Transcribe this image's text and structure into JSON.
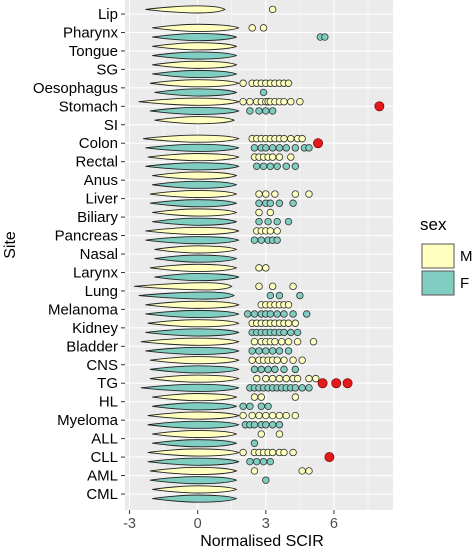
{
  "chart_data": {
    "type": "violin",
    "title": "",
    "xlabel": "Normalised SCIR",
    "ylabel": "Site",
    "xlim": [
      -3.2,
      8.6
    ],
    "x_ticks": [
      -3,
      0,
      3,
      6
    ],
    "x_tick_labels": [
      "-3",
      "0",
      "3",
      "6"
    ],
    "sites": [
      "Lip",
      "Pharynx",
      "Tongue",
      "SG",
      "Oesophagus",
      "Stomach",
      "SI",
      "Colon",
      "Rectal",
      "Anus",
      "Liver",
      "Biliary",
      "Pancreas",
      "Nasal",
      "Larynx",
      "Lung",
      "Melanoma",
      "Kidney",
      "Bladder",
      "CNS",
      "TG",
      "HL",
      "Myeloma",
      "ALL",
      "CLL",
      "AML",
      "CML"
    ],
    "legend": {
      "title": "sex",
      "position": "right",
      "entries": [
        {
          "key": "M",
          "label": "M",
          "color": "#FFFFBF"
        },
        {
          "key": "F",
          "label": "F",
          "color": "#80CDC1"
        }
      ]
    },
    "colors": {
      "male_fill": "#FFFFBF",
      "female_fill": "#80CDC1",
      "outlier_stroke": "#333333",
      "highlight": "#E31A1C",
      "panel_bg": "#EBEBEB",
      "grid": "#FFFFFF"
    },
    "grid": true,
    "violins": [
      {
        "site": "Lip",
        "sex": "M",
        "range": [
          -2.3,
          1.2
        ],
        "peak": 0
      },
      {
        "site": "Pharynx",
        "sex": "M",
        "range": [
          -2.0,
          1.8
        ],
        "peak": 0
      },
      {
        "site": "Pharynx",
        "sex": "F",
        "range": [
          -2.0,
          1.7
        ],
        "peak": 0
      },
      {
        "site": "Tongue",
        "sex": "M",
        "range": [
          -2.0,
          1.7
        ],
        "peak": 0
      },
      {
        "site": "Tongue",
        "sex": "F",
        "range": [
          -2.0,
          1.7
        ],
        "peak": 0
      },
      {
        "site": "SG",
        "sex": "M",
        "range": [
          -2.0,
          1.7
        ],
        "peak": 0
      },
      {
        "site": "SG",
        "sex": "F",
        "range": [
          -2.0,
          1.7
        ],
        "peak": 0
      },
      {
        "site": "Oesophagus",
        "sex": "M",
        "range": [
          -2.1,
          1.8
        ],
        "peak": 0
      },
      {
        "site": "Oesophagus",
        "sex": "F",
        "range": [
          -1.9,
          1.7
        ],
        "peak": 0
      },
      {
        "site": "Stomach",
        "sex": "M",
        "range": [
          -2.6,
          1.8
        ],
        "peak": 0
      },
      {
        "site": "Stomach",
        "sex": "F",
        "range": [
          -2.1,
          1.8
        ],
        "peak": 0
      },
      {
        "site": "SI",
        "sex": "M",
        "range": [
          -1.9,
          1.6
        ],
        "peak": 0
      },
      {
        "site": "Colon",
        "sex": "M",
        "range": [
          -2.4,
          1.8
        ],
        "peak": 0
      },
      {
        "site": "Colon",
        "sex": "F",
        "range": [
          -2.3,
          1.8
        ],
        "peak": 0
      },
      {
        "site": "Rectal",
        "sex": "M",
        "range": [
          -2.2,
          1.8
        ],
        "peak": 0
      },
      {
        "site": "Rectal",
        "sex": "F",
        "range": [
          -2.3,
          1.8
        ],
        "peak": 0
      },
      {
        "site": "Anus",
        "sex": "M",
        "range": [
          -2.0,
          1.7
        ],
        "peak": 0
      },
      {
        "site": "Anus",
        "sex": "F",
        "range": [
          -2.0,
          1.7
        ],
        "peak": 0
      },
      {
        "site": "Liver",
        "sex": "M",
        "range": [
          -2.1,
          1.7
        ],
        "peak": 0
      },
      {
        "site": "Liver",
        "sex": "F",
        "range": [
          -2.1,
          1.7
        ],
        "peak": 0
      },
      {
        "site": "Biliary",
        "sex": "M",
        "range": [
          -2.0,
          1.7
        ],
        "peak": 0
      },
      {
        "site": "Biliary",
        "sex": "F",
        "range": [
          -2.0,
          1.7
        ],
        "peak": 0
      },
      {
        "site": "Pancreas",
        "sex": "M",
        "range": [
          -2.3,
          1.8
        ],
        "peak": 0
      },
      {
        "site": "Pancreas",
        "sex": "F",
        "range": [
          -2.3,
          1.8
        ],
        "peak": 0
      },
      {
        "site": "Nasal",
        "sex": "M",
        "range": [
          -1.9,
          1.7
        ],
        "peak": 0
      },
      {
        "site": "Nasal",
        "sex": "F",
        "range": [
          -1.9,
          1.7
        ],
        "peak": 0
      },
      {
        "site": "Larynx",
        "sex": "M",
        "range": [
          -2.1,
          1.7
        ],
        "peak": 0
      },
      {
        "site": "Larynx",
        "sex": "F",
        "range": [
          -1.9,
          1.8
        ],
        "peak": 0
      },
      {
        "site": "Lung",
        "sex": "M",
        "range": [
          -2.8,
          1.5
        ],
        "peak": 0.4
      },
      {
        "site": "Lung",
        "sex": "F",
        "range": [
          -2.6,
          1.6
        ],
        "peak": 0.4
      },
      {
        "site": "Melanoma",
        "sex": "M",
        "range": [
          -2.3,
          1.8
        ],
        "peak": 0
      },
      {
        "site": "Melanoma",
        "sex": "F",
        "range": [
          -2.3,
          1.8
        ],
        "peak": 0
      },
      {
        "site": "Kidney",
        "sex": "M",
        "range": [
          -2.2,
          1.8
        ],
        "peak": 0
      },
      {
        "site": "Kidney",
        "sex": "F",
        "range": [
          -2.3,
          1.8
        ],
        "peak": 0
      },
      {
        "site": "Bladder",
        "sex": "M",
        "range": [
          -2.5,
          1.8
        ],
        "peak": 0
      },
      {
        "site": "Bladder",
        "sex": "F",
        "range": [
          -2.3,
          1.8
        ],
        "peak": 0
      },
      {
        "site": "CNS",
        "sex": "M",
        "range": [
          -2.1,
          1.8
        ],
        "peak": 0
      },
      {
        "site": "CNS",
        "sex": "F",
        "range": [
          -2.1,
          1.8
        ],
        "peak": 0
      },
      {
        "site": "TG",
        "sex": "M",
        "range": [
          -2.1,
          1.8
        ],
        "peak": 0
      },
      {
        "site": "TG",
        "sex": "F",
        "range": [
          -2.5,
          1.8
        ],
        "peak": 0
      },
      {
        "site": "HL",
        "sex": "M",
        "range": [
          -2.0,
          1.7
        ],
        "peak": 0
      },
      {
        "site": "HL",
        "sex": "F",
        "range": [
          -2.0,
          1.7
        ],
        "peak": 0
      },
      {
        "site": "Myeloma",
        "sex": "M",
        "range": [
          -2.2,
          1.8
        ],
        "peak": 0
      },
      {
        "site": "Myeloma",
        "sex": "F",
        "range": [
          -2.2,
          1.8
        ],
        "peak": 0
      },
      {
        "site": "ALL",
        "sex": "M",
        "range": [
          -2.0,
          1.7
        ],
        "peak": 0
      },
      {
        "site": "ALL",
        "sex": "F",
        "range": [
          -2.0,
          1.7
        ],
        "peak": 0
      },
      {
        "site": "CLL",
        "sex": "M",
        "range": [
          -2.2,
          1.8
        ],
        "peak": 0
      },
      {
        "site": "CLL",
        "sex": "F",
        "range": [
          -2.2,
          1.8
        ],
        "peak": 0
      },
      {
        "site": "AML",
        "sex": "M",
        "range": [
          -2.1,
          1.7
        ],
        "peak": 0
      },
      {
        "site": "AML",
        "sex": "F",
        "range": [
          -2.1,
          1.7
        ],
        "peak": 0
      },
      {
        "site": "CML",
        "sex": "M",
        "range": [
          -2.0,
          1.7
        ],
        "peak": 0
      },
      {
        "site": "CML",
        "sex": "F",
        "range": [
          -2.0,
          1.7
        ],
        "peak": 0
      }
    ],
    "outliers": [
      {
        "site": "Lip",
        "sex": "M",
        "x": [
          3.3
        ]
      },
      {
        "site": "Pharynx",
        "sex": "M",
        "x": [
          2.4,
          2.9
        ]
      },
      {
        "site": "Pharynx",
        "sex": "F",
        "x": [
          5.4,
          5.6
        ]
      },
      {
        "site": "Oesophagus",
        "sex": "M",
        "x": [
          2.0,
          2.4,
          2.6,
          2.8,
          3.0,
          3.2,
          3.4,
          3.6,
          3.8,
          4.0
        ]
      },
      {
        "site": "Oesophagus",
        "sex": "F",
        "x": [
          2.9
        ]
      },
      {
        "site": "Stomach",
        "sex": "M",
        "x": [
          2.0,
          2.3,
          2.6,
          2.8,
          3.0,
          3.1,
          3.2,
          3.4,
          3.6,
          3.8,
          4.1,
          4.5
        ]
      },
      {
        "site": "Stomach",
        "sex": "F",
        "x": [
          2.3,
          2.7,
          3.0,
          3.3
        ]
      },
      {
        "site": "Colon",
        "sex": "M",
        "x": [
          2.4,
          2.6,
          2.8,
          3.0,
          3.2,
          3.4,
          3.6,
          3.8,
          4.1,
          4.4,
          4.6
        ]
      },
      {
        "site": "Colon",
        "sex": "F",
        "x": [
          2.5,
          2.8,
          3.0,
          3.3,
          3.6,
          3.9,
          4.3,
          4.7,
          4.9
        ]
      },
      {
        "site": "Rectal",
        "sex": "M",
        "x": [
          2.5,
          2.7,
          2.9,
          3.1,
          3.3,
          3.6,
          4.1
        ]
      },
      {
        "site": "Rectal",
        "sex": "F",
        "x": [
          2.6,
          2.9,
          3.2,
          3.5,
          3.9,
          4.3
        ]
      },
      {
        "site": "Liver",
        "sex": "M",
        "x": [
          2.7,
          3.0,
          3.4,
          4.3,
          4.9
        ]
      },
      {
        "site": "Liver",
        "sex": "F",
        "x": [
          2.7,
          3.0,
          3.2,
          3.6,
          4.2
        ]
      },
      {
        "site": "Biliary",
        "sex": "M",
        "x": [
          2.7,
          3.2
        ]
      },
      {
        "site": "Biliary",
        "sex": "F",
        "x": [
          2.7,
          3.1,
          3.5,
          4.0
        ]
      },
      {
        "site": "Pancreas",
        "sex": "M",
        "x": [
          2.6,
          2.8,
          3.0,
          3.2,
          3.5
        ]
      },
      {
        "site": "Pancreas",
        "sex": "F",
        "x": [
          2.5,
          2.8,
          3.1,
          3.3,
          3.5
        ]
      },
      {
        "site": "Larynx",
        "sex": "M",
        "x": [
          2.7,
          3.0
        ]
      },
      {
        "site": "Lung",
        "sex": "M",
        "x": [
          2.7,
          3.3,
          4.2
        ]
      },
      {
        "site": "Lung",
        "sex": "F",
        "x": [
          3.2,
          3.6,
          4.5
        ]
      },
      {
        "site": "Melanoma",
        "sex": "M",
        "x": [
          2.8,
          3.0,
          3.2,
          3.4,
          3.6,
          3.8,
          4.0
        ]
      },
      {
        "site": "Melanoma",
        "sex": "F",
        "x": [
          2.2,
          2.5,
          2.8,
          3.0,
          3.2,
          3.5,
          3.8,
          4.2,
          4.8
        ]
      },
      {
        "site": "Kidney",
        "sex": "M",
        "x": [
          2.4,
          2.6,
          2.8,
          3.0,
          3.2,
          3.4,
          3.6,
          3.8,
          4.0,
          4.3
        ]
      },
      {
        "site": "Kidney",
        "sex": "F",
        "x": [
          2.4,
          2.6,
          2.8,
          3.0,
          3.2,
          3.4,
          3.6,
          3.8,
          4.1,
          4.4
        ]
      },
      {
        "site": "Bladder",
        "sex": "M",
        "x": [
          2.5,
          2.8,
          3.0,
          3.2,
          3.4,
          3.7,
          4.0,
          4.4,
          5.1
        ]
      },
      {
        "site": "Bladder",
        "sex": "F",
        "x": [
          2.4,
          2.7,
          3.0,
          3.3,
          3.6,
          4.0
        ]
      },
      {
        "site": "CNS",
        "sex": "M",
        "x": [
          2.4,
          2.7,
          2.9,
          3.1,
          3.3,
          3.5,
          3.8,
          4.2,
          4.6
        ]
      },
      {
        "site": "CNS",
        "sex": "F",
        "x": [
          2.5,
          2.8,
          3.1,
          3.4,
          3.8,
          4.3
        ]
      },
      {
        "site": "TG",
        "sex": "M",
        "x": [
          2.6,
          3.0,
          3.3,
          3.6,
          3.9,
          4.2,
          4.4,
          4.9,
          5.2
        ]
      },
      {
        "site": "TG",
        "sex": "F",
        "x": [
          2.3,
          2.5,
          2.7,
          2.9,
          3.1,
          3.3,
          3.5,
          3.7,
          3.9,
          4.1,
          4.3,
          4.6,
          4.9
        ]
      },
      {
        "site": "HL",
        "sex": "M",
        "x": [
          2.5,
          2.8,
          4.3
        ]
      },
      {
        "site": "HL",
        "sex": "F",
        "x": [
          2.0,
          2.3,
          2.8,
          3.1
        ]
      },
      {
        "site": "Myeloma",
        "sex": "M",
        "x": [
          2.0,
          2.4,
          2.7,
          3.0,
          3.3,
          3.6,
          3.9,
          4.3
        ]
      },
      {
        "site": "Myeloma",
        "sex": "F",
        "x": [
          2.1,
          2.3,
          2.5,
          2.8,
          3.0,
          3.3,
          3.6
        ]
      },
      {
        "site": "ALL",
        "sex": "M",
        "x": [
          2.8,
          3.6
        ]
      },
      {
        "site": "ALL",
        "sex": "F",
        "x": [
          2.5
        ]
      },
      {
        "site": "CLL",
        "sex": "M",
        "x": [
          2.0,
          2.5,
          2.7,
          2.9,
          3.1,
          3.3,
          3.6,
          3.8,
          4.2
        ]
      },
      {
        "site": "CLL",
        "sex": "F",
        "x": [
          2.3,
          2.6,
          2.9,
          3.2
        ]
      },
      {
        "site": "AML",
        "sex": "M",
        "x": [
          2.5,
          4.6,
          4.9
        ]
      },
      {
        "site": "AML",
        "sex": "F",
        "x": [
          3.0
        ]
      }
    ],
    "highlighted_points": [
      {
        "site": "Stomach",
        "x": 8.0
      },
      {
        "site": "Colon",
        "x": 5.3
      },
      {
        "site": "TG",
        "x": 5.5
      },
      {
        "site": "TG",
        "x": 6.1
      },
      {
        "site": "TG",
        "x": 6.6
      },
      {
        "site": "CLL",
        "x": 5.8
      }
    ]
  }
}
